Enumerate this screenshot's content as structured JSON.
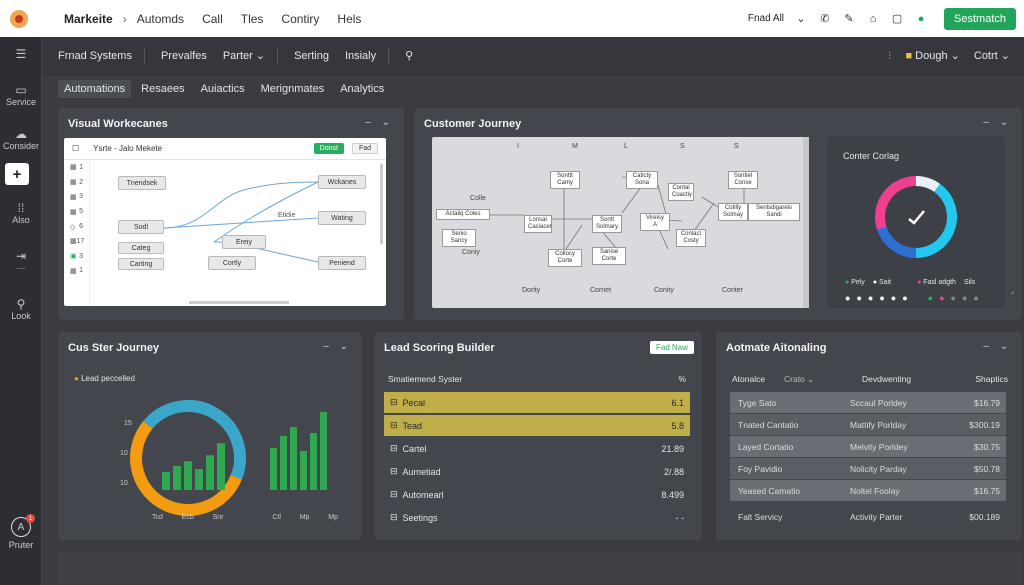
{
  "topbar": {
    "brand": "Markeite",
    "nav": [
      "Automds",
      "Call",
      "Tles",
      "Contiry",
      "Hels"
    ],
    "right_text": "Fnad All",
    "search_button": "Sestmatch"
  },
  "sidebar": {
    "items": [
      "Service",
      "Consider",
      "Also",
      "Look"
    ],
    "bottom_label": "Pruter",
    "badge": "1"
  },
  "toolbar2": {
    "items": [
      "Frnad Systems",
      "Prevalfes",
      "Parter",
      "Serting",
      "Insialy"
    ],
    "user": "Dough",
    "right_label": "Cotrt"
  },
  "tabs": [
    "Automations",
    "Resaees",
    "Auiactics",
    "Merignmates",
    "Analytics"
  ],
  "workflow": {
    "title": "Visual Workecanes",
    "toolbar_label": "Ysrte - Jalo  Mekete",
    "btn_primary": "Donst",
    "btn_secondary": "Fad",
    "rows": [
      "1",
      "2",
      "3",
      "5",
      "6",
      "17",
      "3",
      "1"
    ],
    "nodes": [
      "Tnendsek",
      "Sodl",
      "Categ",
      "Carting",
      "Ereiy",
      "Cortly",
      "Wckanes",
      "Wating",
      "Peniend"
    ],
    "connector_label": "Etidie"
  },
  "customer_journey": {
    "title": "Customer Journey",
    "top_labels": [
      "I",
      "M",
      "L",
      "S",
      "S"
    ],
    "left_label": "Colle",
    "nodes": [
      "Actaliq Coles",
      "Senio Sancy",
      "Lonsal Caciacer",
      "Sonttt Camy",
      "Sontt Solmary",
      "Caticty Sona",
      "Contal Coactiy",
      "Sontiel Conse",
      "Virelsy A",
      "Conlact Costy",
      "Cotilly Solmay",
      "Collocy Corte",
      "Sanise Corte",
      "Senlsdigareis Sandi"
    ],
    "bottom_labels": [
      "Coniy",
      "Dority",
      "Cornet",
      "Conity",
      "Conter"
    ],
    "gauge": {
      "title": "Conter Corlag",
      "legend": [
        "Pely",
        "Sait",
        "Fasl adgth",
        "Sils"
      ],
      "segments": [
        {
          "color": "#e8f1f6",
          "value": 0.1
        },
        {
          "color": "#22c8ef",
          "value": 0.4
        },
        {
          "color": "#2f6fd4",
          "value": 0.2
        },
        {
          "color": "#ef3f8f",
          "value": 0.3
        }
      ]
    }
  },
  "cus_journey2": {
    "title": "Cus Ster Journey",
    "legend": "Lead peccelled",
    "y_labels": [
      "15",
      "10",
      "10"
    ],
    "x_labels": [
      "Tcd",
      "Ecb",
      "Snr",
      "Ctl",
      "Mp",
      "Mp"
    ],
    "bars1": [
      30,
      40,
      48,
      35,
      58,
      78
    ],
    "bars2": [
      70,
      90,
      105,
      65,
      95,
      130
    ]
  },
  "lead_scoring": {
    "title": "Lead Scoring Builder",
    "button": "Fad Naw",
    "header_left": "Smatiemend Syster",
    "header_right": "%",
    "rows": [
      {
        "label": "Pecal",
        "value": "6.1"
      },
      {
        "label": "Tead",
        "value": "5.8"
      },
      {
        "label": "Cartel",
        "value": "21.89"
      },
      {
        "label": "Aumetiad",
        "value": "2/.88"
      },
      {
        "label": "Automearl",
        "value": "8.499"
      },
      {
        "label": "Seetings",
        "value": "- -"
      }
    ]
  },
  "automation": {
    "title": "Aotmate Aitonaling",
    "col1": "Atonalce",
    "col1b": "Crato",
    "col2": "Devdwenting",
    "col3": "Shaptics",
    "rows": [
      {
        "a": "Tyge Sato",
        "b": "Sccaul Porldey",
        "c": "$16.79"
      },
      {
        "a": "Tnated Cantatio",
        "b": "Mattify Porlday",
        "c": "$300.19"
      },
      {
        "a": "Layed Cortatio",
        "b": "Melvity Porldey",
        "c": "$30.75"
      },
      {
        "a": "Foy Pavidio",
        "b": "Nolicity Parday",
        "c": "$50.78"
      },
      {
        "a": "Yeased Camatio",
        "b": "Noltel Foolay",
        "c": "$16.75"
      },
      {
        "a": "Falt Servicy",
        "b": "Activity Parter",
        "c": "$00.189"
      }
    ]
  }
}
